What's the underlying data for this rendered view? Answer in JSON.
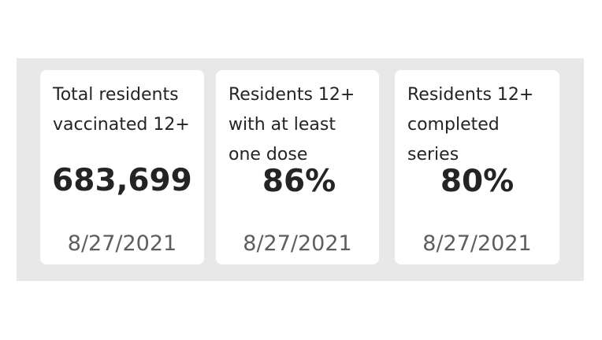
{
  "cards": [
    {
      "title": "Total residents\nvaccinated 12+",
      "value": "683,699",
      "date": "8/27/2021"
    },
    {
      "title": "Residents 12+\nwith at least\none dose",
      "value": "86%",
      "date": "8/27/2021"
    },
    {
      "title": "Residents 12+\ncompleted\nseries",
      "value": "80%",
      "date": "8/27/2021"
    }
  ]
}
